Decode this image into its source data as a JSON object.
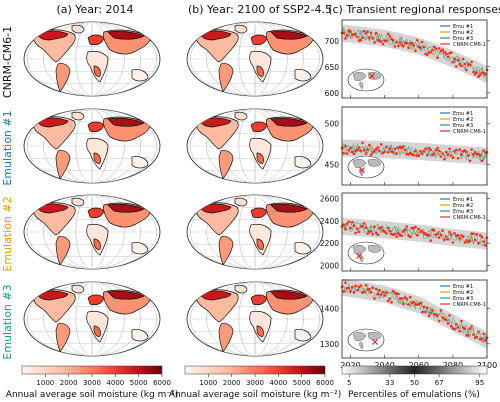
{
  "titles": {
    "a": "(a) Year: 2014",
    "b": "(b) Year: 2100 of SSP2-4.5",
    "c": "(c) Transient regional responses"
  },
  "rows": [
    {
      "label": "CNRM-CM6-1",
      "color": "#000000"
    },
    {
      "label": "Emulation #1",
      "color": "#1f77b4"
    },
    {
      "label": "Emulation #2",
      "color": "#e69f00"
    },
    {
      "label": "Emulation #3",
      "color": "#1a9e77"
    }
  ],
  "colorbar": {
    "label": "Annual average soil moisture (kg m⁻²)",
    "ticks": [
      "1000",
      "2000",
      "3000",
      "4000",
      "5000",
      "6000"
    ],
    "min": 0,
    "max": 6000,
    "colors": [
      "#fff5f0",
      "#fcbba1",
      "#fb6a4a",
      "#cb181d",
      "#67000d"
    ]
  },
  "percentile_bar": {
    "label": "Percentiles of emulations (%)",
    "ticks": [
      "5",
      "33",
      "50",
      "67",
      "95"
    ]
  },
  "legend": {
    "entries": [
      "Emu #1",
      "Emu #2",
      "Emu #3",
      "CNRM-CM6-1"
    ],
    "colors": [
      "#1f77b4",
      "#e69f00",
      "#1a9e77",
      "#ff2a1a"
    ]
  },
  "time_axis": {
    "ticks": [
      "2020",
      "2040",
      "2060",
      "2080",
      "2100"
    ],
    "range": [
      2015,
      2100
    ]
  },
  "chart_data": [
    {
      "type": "line",
      "x_range": [
        2015,
        2100
      ],
      "ylim": [
        590,
        740
      ],
      "yticks": [
        "600",
        "650",
        "700"
      ],
      "series": [
        {
          "name": "CNRM-CM6-1",
          "x": [
            2015,
            2040,
            2060,
            2080,
            2100
          ],
          "values": [
            715,
            705,
            690,
            665,
            635
          ]
        }
      ]
    },
    {
      "type": "line",
      "x_range": [
        2015,
        2100
      ],
      "ylim": [
        425,
        520
      ],
      "yticks": [
        "450",
        "500"
      ],
      "series": [
        {
          "name": "CNRM-CM6-1",
          "x": [
            2015,
            2040,
            2060,
            2080,
            2100
          ],
          "values": [
            470,
            468,
            466,
            463,
            460
          ]
        }
      ]
    },
    {
      "type": "line",
      "x_range": [
        2015,
        2100
      ],
      "ylim": [
        1950,
        2650
      ],
      "yticks": [
        "2000",
        "2200",
        "2400",
        "2600"
      ],
      "series": [
        {
          "name": "CNRM-CM6-1",
          "x": [
            2015,
            2040,
            2060,
            2080,
            2100
          ],
          "values": [
            2350,
            2320,
            2290,
            2250,
            2220
          ]
        }
      ]
    },
    {
      "type": "line",
      "x_range": [
        2015,
        2100
      ],
      "ylim": [
        1260,
        1480
      ],
      "yticks": [
        "1300",
        "1400"
      ],
      "series": [
        {
          "name": "CNRM-CM6-1",
          "x": [
            2015,
            2040,
            2060,
            2080,
            2100
          ],
          "values": [
            1460,
            1440,
            1410,
            1360,
            1310
          ]
        }
      ]
    }
  ]
}
